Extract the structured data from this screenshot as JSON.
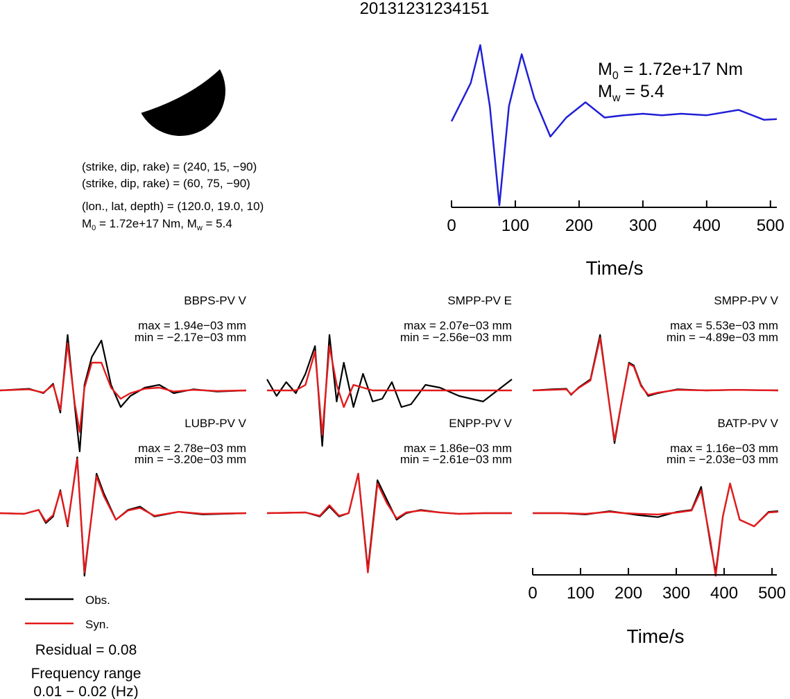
{
  "title": "20131231234151",
  "colors": {
    "observed": "#000000",
    "synthetic": "#e31a1c",
    "stf": "#1f1fd6",
    "beachball": "#000000"
  },
  "focal_mechanism": {
    "plane1": "(strike, dip, rake) = (240, 15, −90)",
    "plane2": "(strike, dip, rake) = (60, 75, −90)",
    "location": "(lon., lat, depth) = (120.0, 19.0, 10)",
    "m0_prefix": "M",
    "m0_sub": "0",
    "m0_value": " = 1.72e+17 Nm, M",
    "mw_sub": "w",
    "mw_value": " = 5.4"
  },
  "stf_panel": {
    "m0_label": "M",
    "m0_sub": "0",
    "m0_value": " = 1.72e+17 Nm",
    "mw_label": "M",
    "mw_sub": "w",
    "mw_value": " = 5.4",
    "xlabel": "Time/s"
  },
  "waveform_axis_xlabel": "Time/s",
  "legend": {
    "obs": "Obs.",
    "syn": "Syn."
  },
  "residual": "Residual = 0.08",
  "frequency_label": "Frequency range",
  "frequency_value": "0.01 − 0.02 (Hz)",
  "chart_data": [
    {
      "type": "line",
      "title": "",
      "xlabel": "Time/s",
      "ylabel": "",
      "xlim": [
        0,
        510
      ],
      "xticks": [
        0,
        100,
        200,
        300,
        400,
        500
      ],
      "grid": false,
      "series": [
        {
          "x": [
            0,
            30,
            45,
            60,
            75,
            90,
            110,
            130,
            155,
            180,
            210,
            240,
            270,
            300,
            330,
            360,
            400,
            450,
            490,
            510
          ],
          "y": [
            0,
            0.5,
            1.0,
            0.2,
            -1.1,
            0.2,
            0.88,
            0.3,
            -0.2,
            0.05,
            0.25,
            0.05,
            0.08,
            0.1,
            0.08,
            0.1,
            0.08,
            0.15,
            0.02,
            0.03
          ]
        }
      ]
    },
    {
      "type": "line",
      "xlabel": "Time/s",
      "xlim": [
        0,
        510
      ],
      "xticks": [
        0,
        100,
        200,
        300,
        400,
        500
      ],
      "legend": "bottom-left",
      "panels": [
        {
          "station": "BBPS-PV V",
          "max": "max = 1.94e−03 mm",
          "min": "min = −2.17e−03 mm",
          "obs_x": [
            0,
            60,
            90,
            110,
            125,
            140,
            155,
            165,
            175,
            190,
            210,
            230,
            250,
            270,
            300,
            330,
            360,
            400,
            450,
            510
          ],
          "obs_y": [
            0,
            0.03,
            -0.05,
            0.12,
            -0.4,
            1.0,
            -0.3,
            -1.1,
            0.1,
            0.6,
            0.9,
            0.1,
            -0.3,
            -0.1,
            0.05,
            0.1,
            -0.05,
            0.02,
            -0.02,
            0
          ],
          "syn_x": [
            0,
            60,
            90,
            110,
            125,
            140,
            155,
            165,
            175,
            190,
            210,
            230,
            250,
            270,
            300,
            330,
            360,
            400,
            450,
            510
          ],
          "syn_y": [
            0,
            0.02,
            -0.04,
            0.1,
            -0.35,
            0.85,
            -0.25,
            -0.75,
            0.05,
            0.5,
            0.5,
            0.05,
            -0.15,
            -0.05,
            0.03,
            0.05,
            -0.02,
            0.01,
            -0.01,
            0
          ]
        },
        {
          "station": "SMPP-PV E",
          "max": "max = 2.07e−03 mm",
          "min": "min = −2.56e−03 mm",
          "obs_x": [
            0,
            20,
            40,
            60,
            80,
            100,
            115,
            130,
            145,
            160,
            180,
            200,
            220,
            240,
            260,
            280,
            300,
            330,
            360,
            400,
            450,
            510
          ],
          "obs_y": [
            0.2,
            -0.1,
            0.15,
            -0.05,
            0.3,
            0.8,
            -1.0,
            1.0,
            -0.2,
            0.5,
            -0.3,
            0.3,
            -0.2,
            -0.15,
            0.15,
            -0.3,
            -0.25,
            0.1,
            0.05,
            -0.1,
            -0.2,
            0.2
          ],
          "syn_x": [
            0,
            60,
            80,
            100,
            115,
            130,
            145,
            160,
            180,
            200,
            220,
            260,
            300,
            360,
            420,
            510
          ],
          "syn_y": [
            0,
            0,
            0.1,
            0.7,
            -0.8,
            0.8,
            0.1,
            -0.3,
            0.1,
            0.05,
            0,
            0,
            0,
            0,
            0,
            0
          ]
        },
        {
          "station": "SMPP-PV V",
          "max": "max = 5.53e−03 mm",
          "min": "min = −4.89e−03 mm",
          "obs_x": [
            0,
            40,
            70,
            80,
            95,
            120,
            140,
            160,
            170,
            185,
            200,
            210,
            225,
            240,
            260,
            300,
            360,
            420,
            510
          ],
          "obs_y": [
            0,
            0.02,
            0.03,
            -0.08,
            0.05,
            0.2,
            1.0,
            -0.3,
            -0.95,
            -0.2,
            0.5,
            0.45,
            0.1,
            -0.1,
            -0.05,
            0.02,
            0,
            0.01,
            0
          ],
          "syn_x": [
            0,
            40,
            70,
            80,
            95,
            120,
            140,
            160,
            170,
            185,
            200,
            210,
            225,
            240,
            260,
            300,
            360,
            420,
            510
          ],
          "syn_y": [
            0,
            0.01,
            0.02,
            -0.07,
            0.04,
            0.18,
            0.95,
            -0.3,
            -0.9,
            -0.2,
            0.48,
            0.43,
            0.08,
            -0.08,
            -0.04,
            0.01,
            0,
            0.01,
            0
          ]
        },
        {
          "station": "LUBP-PV V",
          "max": "max = 2.78e−03 mm",
          "min": "min = −3.20e−03 mm",
          "obs_x": [
            0,
            50,
            80,
            95,
            110,
            125,
            140,
            160,
            175,
            200,
            215,
            240,
            265,
            290,
            320,
            370,
            420,
            510
          ],
          "obs_y": [
            0,
            -0.01,
            0.05,
            -0.15,
            -0.05,
            0.35,
            -0.2,
            0.85,
            -0.95,
            0.6,
            0.3,
            -0.1,
            0.05,
            0.1,
            -0.05,
            0.02,
            -0.02,
            0
          ],
          "syn_x": [
            0,
            50,
            80,
            95,
            110,
            125,
            140,
            160,
            175,
            200,
            215,
            240,
            265,
            290,
            320,
            370,
            420,
            510
          ],
          "syn_y": [
            0,
            -0.01,
            0.05,
            -0.13,
            -0.03,
            0.33,
            -0.18,
            0.82,
            -0.9,
            0.56,
            0.26,
            -0.1,
            0.04,
            0.08,
            -0.04,
            0.02,
            -0.01,
            0
          ]
        },
        {
          "station": "ENPP-PV V",
          "max": "max = 1.86e−03 mm",
          "min": "min = −2.61e−03 mm",
          "obs_x": [
            0,
            80,
            110,
            130,
            150,
            170,
            190,
            210,
            230,
            250,
            270,
            290,
            320,
            360,
            400,
            450,
            510
          ],
          "obs_y": [
            0,
            0.01,
            -0.05,
            0.1,
            -0.05,
            0.0,
            0.6,
            -0.85,
            0.5,
            0.2,
            -0.1,
            0.0,
            0.05,
            0.01,
            -0.01,
            0,
            0
          ],
          "syn_x": [
            0,
            80,
            110,
            130,
            150,
            170,
            190,
            210,
            230,
            250,
            270,
            290,
            320,
            360,
            400,
            450,
            510
          ],
          "syn_y": [
            0,
            0.01,
            -0.04,
            0.12,
            -0.04,
            0.0,
            0.6,
            -0.9,
            0.45,
            0.15,
            -0.08,
            0.01,
            0.04,
            0.01,
            -0.01,
            0,
            0
          ]
        },
        {
          "station": "BATP-PV V",
          "max": "max = 1.16e−03 mm",
          "min": "min = −2.03e−03 mm",
          "obs_x": [
            0,
            60,
            110,
            160,
            190,
            220,
            260,
            300,
            330,
            350,
            370,
            380,
            395,
            410,
            430,
            460,
            490,
            510
          ],
          "obs_y": [
            0,
            0.0,
            -0.02,
            0.03,
            0.0,
            -0.03,
            -0.06,
            0.02,
            0.05,
            0.4,
            -0.5,
            -0.9,
            -0.05,
            0.45,
            -0.1,
            -0.2,
            0.02,
            0.03
          ],
          "syn_x": [
            0,
            60,
            110,
            160,
            190,
            220,
            260,
            300,
            330,
            350,
            370,
            380,
            395,
            410,
            430,
            460,
            490,
            510
          ],
          "syn_y": [
            0,
            0.0,
            -0.01,
            0.02,
            0.0,
            -0.01,
            -0.02,
            0.01,
            0.04,
            0.35,
            -0.45,
            -0.95,
            -0.05,
            0.45,
            -0.1,
            -0.2,
            0.01,
            0.02
          ]
        }
      ]
    }
  ]
}
